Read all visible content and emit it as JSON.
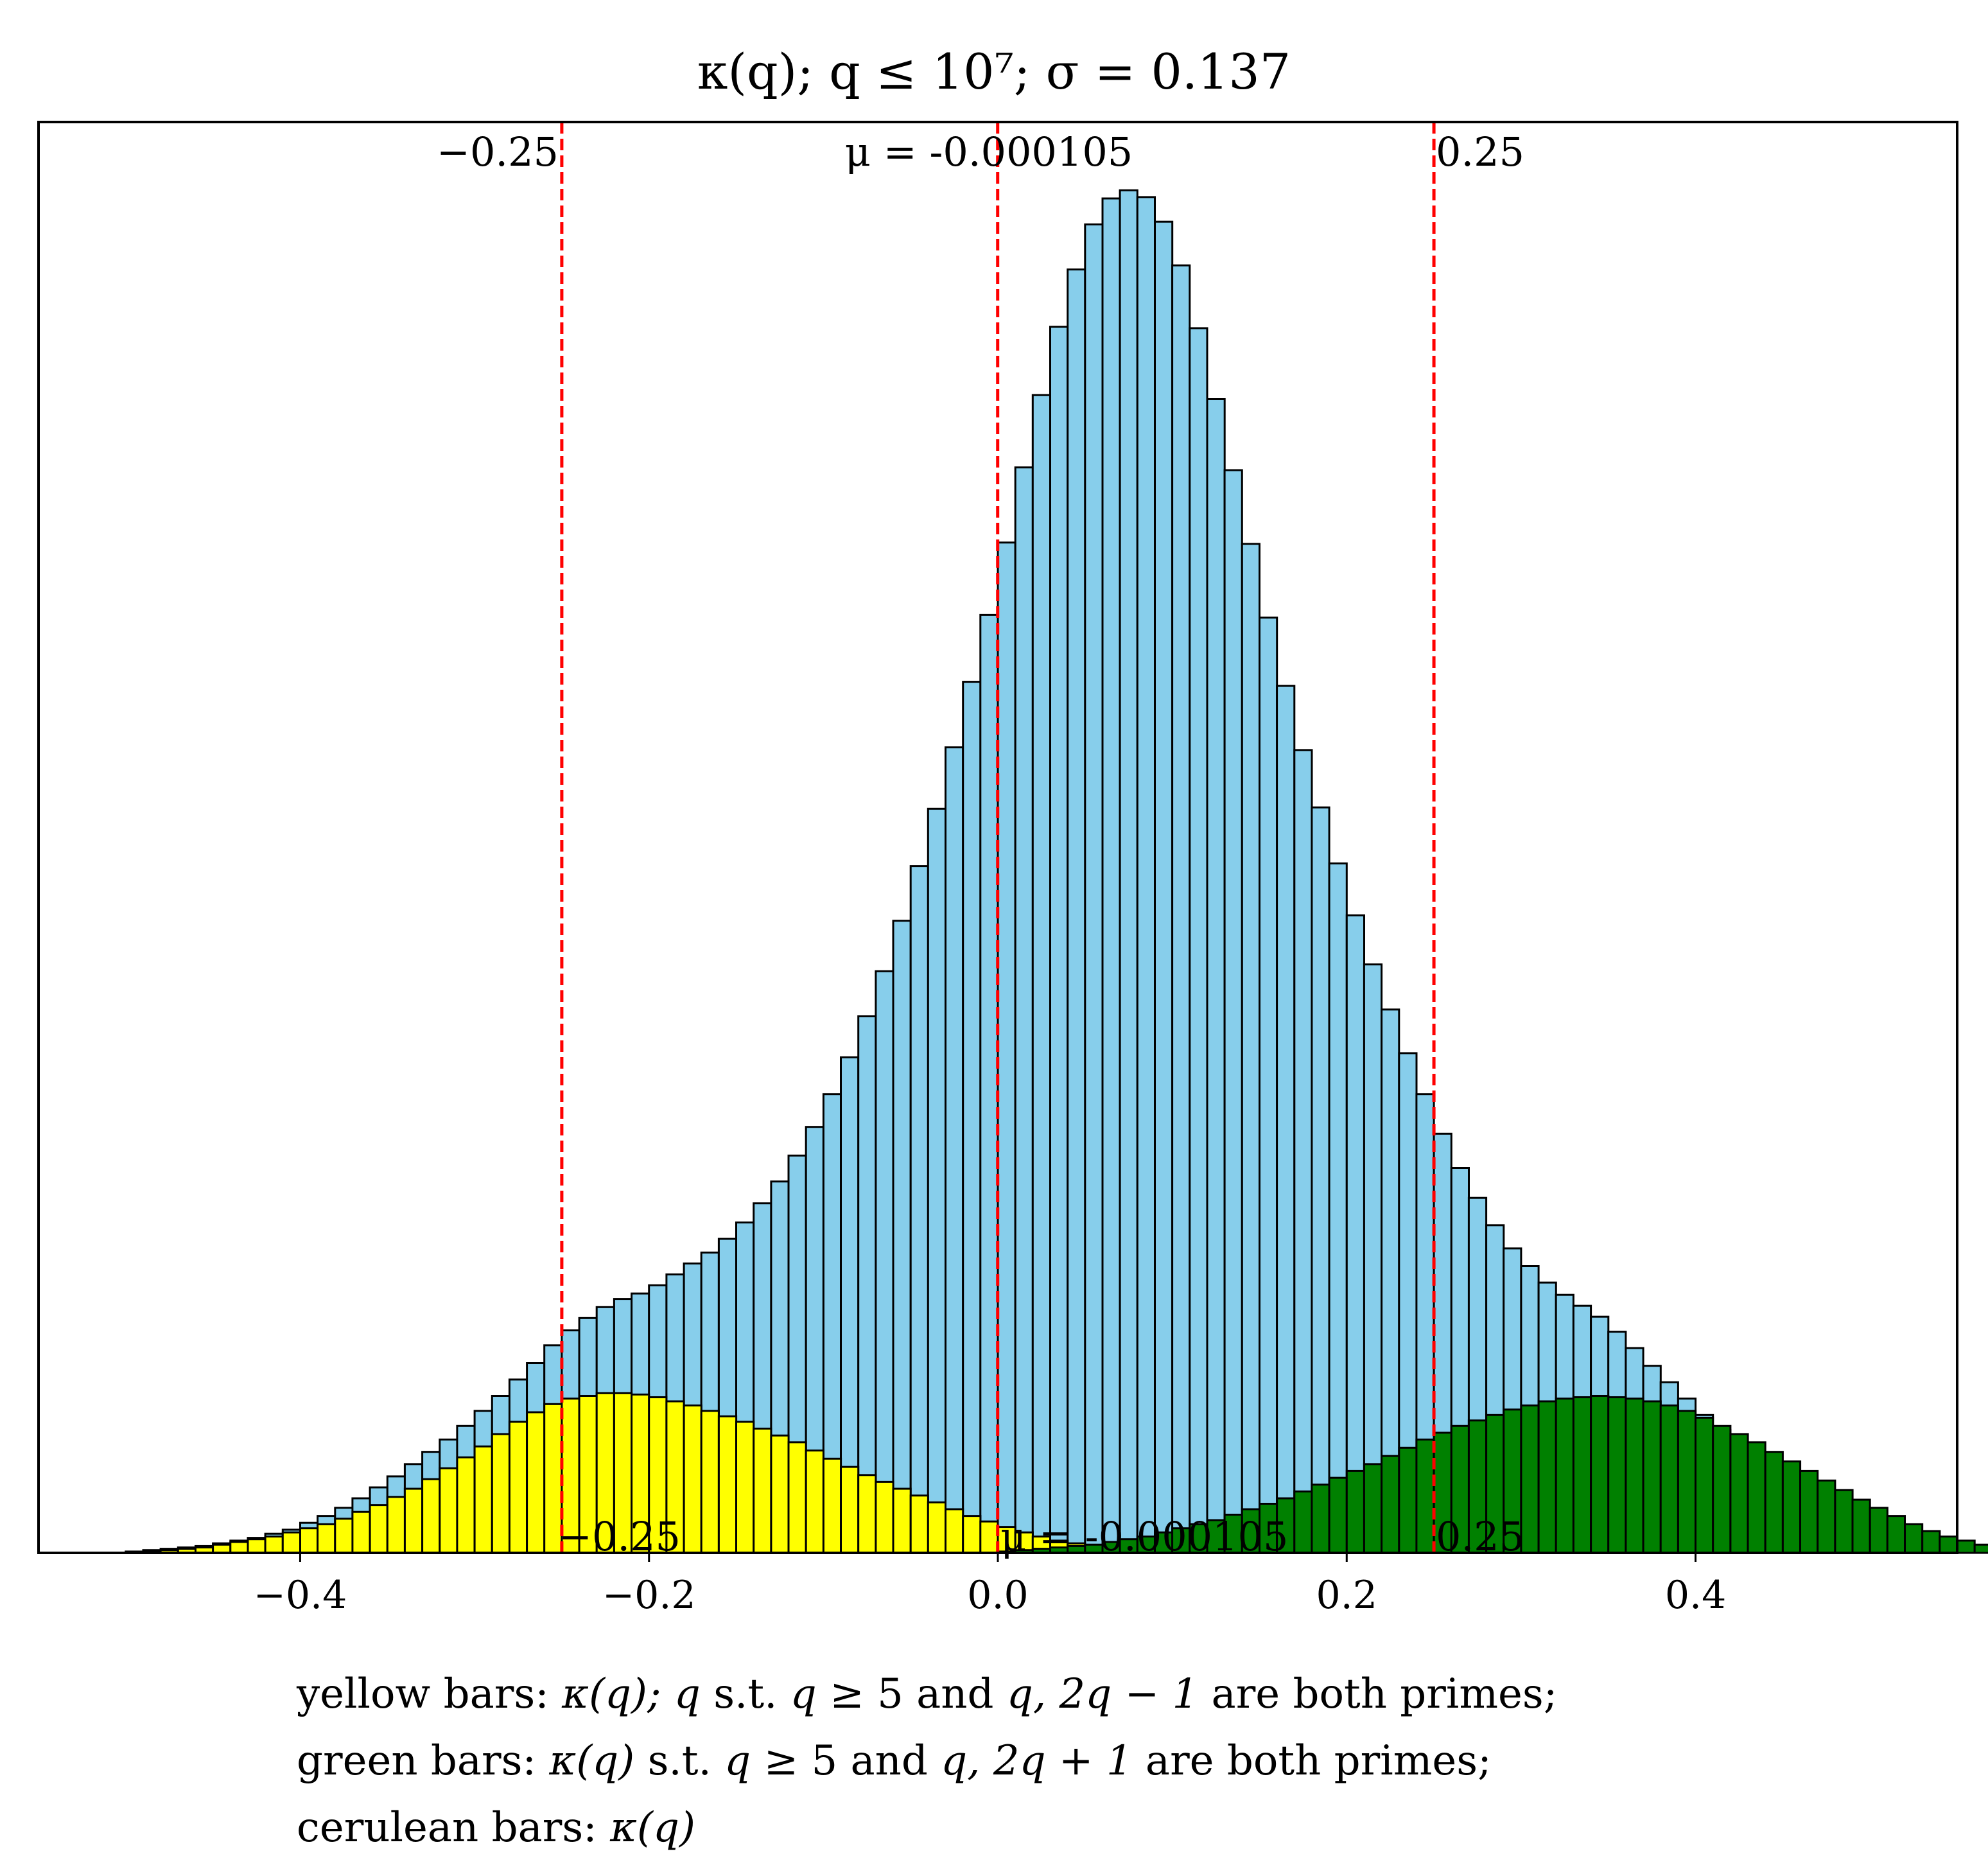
{
  "chart_data": {
    "type": "bar",
    "title": "κ(q); q ≤ 10⁷; σ = 0.137",
    "xlabel": "",
    "ylabel": "",
    "xlim": [
      -0.55,
      0.55
    ],
    "ylim": [
      0,
      1.0
    ],
    "grid": false,
    "bin_width": 0.01,
    "x_ticks": [
      -0.4,
      -0.2,
      0.0,
      0.2,
      0.4
    ],
    "x_tick_labels": [
      "−0.4",
      "−0.2",
      "0.0",
      "0.2",
      "0.4"
    ],
    "annotations": {
      "mean_label": "μ = -0.000105",
      "left_label": "−0.25",
      "right_label": "0.25",
      "overlay_left": "−0.25",
      "overlay_mean": "μ = -0.000105",
      "overlay_right": "0.25"
    },
    "vlines": [
      {
        "x": -0.25,
        "color": "#ff0000",
        "style": "dashed"
      },
      {
        "x": -0.000105,
        "color": "#ff0000",
        "style": "dashed"
      },
      {
        "x": 0.25,
        "color": "#ff0000",
        "style": "dashed"
      }
    ],
    "series": [
      {
        "key": "cerulean",
        "color": "#87ceeb",
        "bin_start": -0.5,
        "values": [
          0.001,
          0.002,
          0.003,
          0.004,
          0.005,
          0.007,
          0.009,
          0.011,
          0.014,
          0.017,
          0.022,
          0.027,
          0.033,
          0.04,
          0.048,
          0.056,
          0.065,
          0.074,
          0.083,
          0.093,
          0.104,
          0.115,
          0.127,
          0.139,
          0.152,
          0.163,
          0.172,
          0.18,
          0.186,
          0.19,
          0.196,
          0.204,
          0.212,
          0.22,
          0.23,
          0.242,
          0.256,
          0.272,
          0.291,
          0.312,
          0.336,
          0.363,
          0.393,
          0.426,
          0.463,
          0.503,
          0.545,
          0.59,
          0.638,
          0.687,
          0.74,
          0.795,
          0.848,
          0.898,
          0.94,
          0.973,
          0.992,
          0.998,
          0.993,
          0.975,
          0.943,
          0.897,
          0.845,
          0.793,
          0.739,
          0.685,
          0.635,
          0.588,
          0.546,
          0.505,
          0.467,
          0.431,
          0.398,
          0.366,
          0.336,
          0.307,
          0.282,
          0.26,
          0.24,
          0.223,
          0.21,
          0.198,
          0.189,
          0.181,
          0.173,
          0.162,
          0.15,
          0.137,
          0.125,
          0.113,
          0.101,
          0.09,
          0.08,
          0.07,
          0.061,
          0.053,
          0.045,
          0.038,
          0.032,
          0.026,
          0.021,
          0.016,
          0.012,
          0.009,
          0.006,
          0.004,
          0.003,
          0.002,
          0.001,
          0.001
        ]
      },
      {
        "key": "yellow",
        "color": "#ffff00",
        "bin_start": -0.49,
        "values": [
          0.001,
          0.002,
          0.003,
          0.004,
          0.006,
          0.008,
          0.01,
          0.012,
          0.015,
          0.018,
          0.021,
          0.025,
          0.03,
          0.035,
          0.041,
          0.047,
          0.054,
          0.062,
          0.07,
          0.078,
          0.087,
          0.096,
          0.103,
          0.109,
          0.113,
          0.115,
          0.117,
          0.117,
          0.116,
          0.114,
          0.111,
          0.108,
          0.104,
          0.1,
          0.096,
          0.091,
          0.086,
          0.081,
          0.075,
          0.069,
          0.063,
          0.057,
          0.052,
          0.047,
          0.042,
          0.037,
          0.032,
          0.027,
          0.023,
          0.019,
          0.015,
          0.012,
          0.009,
          0.007,
          0.005,
          0.004,
          0.003,
          0.002,
          0.001
        ]
      },
      {
        "key": "green",
        "color": "#008000",
        "bin_start": 0.0,
        "values": [
          0.001,
          0.002,
          0.003,
          0.004,
          0.005,
          0.006,
          0.008,
          0.01,
          0.012,
          0.015,
          0.018,
          0.021,
          0.024,
          0.028,
          0.032,
          0.036,
          0.04,
          0.045,
          0.05,
          0.055,
          0.06,
          0.065,
          0.071,
          0.077,
          0.083,
          0.088,
          0.093,
          0.097,
          0.101,
          0.105,
          0.108,
          0.111,
          0.113,
          0.114,
          0.115,
          0.114,
          0.113,
          0.111,
          0.108,
          0.104,
          0.099,
          0.093,
          0.087,
          0.081,
          0.074,
          0.067,
          0.06,
          0.053,
          0.046,
          0.039,
          0.033,
          0.027,
          0.021,
          0.016,
          0.012,
          0.009,
          0.006,
          0.004,
          0.003,
          0.002,
          0.001
        ]
      }
    ]
  },
  "caption": {
    "line1": {
      "a": "yellow bars: ",
      "b": "κ(q); q",
      "c": " s.t. ",
      "d": "q ≥ ",
      "e": "5",
      "f": " and ",
      "g": "q, 2q − 1",
      "h": " are both primes;"
    },
    "line2": {
      "a": "green bars: ",
      "b": "κ(q)",
      "c": " s.t. ",
      "d": "q ≥ ",
      "e": "5",
      "f": " and ",
      "g": "q, 2q + 1",
      "h": " are both primes;"
    },
    "line3": {
      "a": "cerulean bars: ",
      "b": "κ(q)"
    }
  }
}
